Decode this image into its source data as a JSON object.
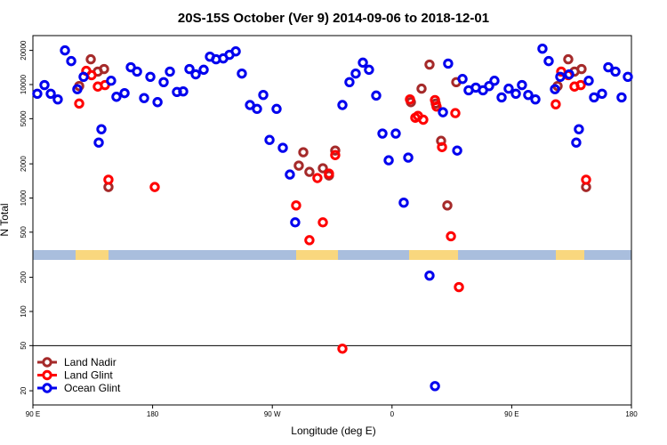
{
  "chart_data": {
    "type": "scatter",
    "title": "20S-15S October (Ver 9)   2014-09-06 to 2018-12-01",
    "xlabel": "Longitude (deg E)",
    "ylabel": "N Total",
    "xlim": [
      90,
      540
    ],
    "xticks": [
      {
        "value": 90,
        "label": "90 E"
      },
      180,
      {
        "value": 270,
        "label": "90 W"
      },
      {
        "value": 360,
        "label": "0"
      },
      {
        "value": 450,
        "label": "90 E"
      },
      {
        "value": 540,
        "label": "180"
      }
    ],
    "ylim": [
      15,
      27000
    ],
    "yscale": "log",
    "yticks": [
      20,
      50,
      100,
      200,
      500,
      1000,
      2000,
      5000,
      10000,
      20000
    ],
    "hline": 50,
    "legend": "bottom-left",
    "series": [
      {
        "name": "Land Nadir",
        "color": "#a52a2a",
        "x": [
          124.8,
          133.5,
          138.8,
          143.5,
          146.8,
          289.9,
          293.3,
          297.9,
          308.0,
          312.6,
          317.3,
          374.2,
          382.2,
          388.2,
          392.9,
          396.9,
          401.6,
          408.3,
          484.5,
          492.5,
          497.2,
          502.5,
          505.9
        ],
        "values": [
          9700,
          16700,
          13000,
          13700,
          1250,
          1930,
          2530,
          1700,
          1830,
          1580,
          2620,
          7000,
          9200,
          15000,
          6800,
          3190,
          860,
          10500,
          9700,
          16700,
          13000,
          13700,
          1250
        ]
      },
      {
        "name": "Land Glint",
        "color": "#ff0000",
        "x": [
          124.8,
          130.1,
          134.1,
          138.8,
          144.2,
          146.8,
          181.6,
          287.9,
          297.9,
          303.9,
          308.0,
          312.6,
          317.3,
          322.7,
          373.5,
          377.5,
          379.5,
          383.5,
          392.3,
          393.5,
          397.6,
          404.3,
          407.6,
          410.3,
          483.1,
          487.2,
          492.5,
          497.2,
          501.9,
          505.9
        ],
        "values": [
          6800,
          13200,
          12100,
          9600,
          9900,
          1450,
          1250,
          860,
          425,
          1500,
          610,
          1640,
          2390,
          47,
          7400,
          5100,
          5300,
          4900,
          7300,
          6400,
          2810,
          460,
          5600,
          164,
          6700,
          13000,
          12100,
          9600,
          9900,
          1450
        ]
      },
      {
        "name": "Ocean Glint",
        "color": "#0000ee",
        "x": [
          93.3,
          98.7,
          103.4,
          108.7,
          114.1,
          118.8,
          123.4,
          128.1,
          139.5,
          141.5,
          148.8,
          152.8,
          158.9,
          163.6,
          168.3,
          173.6,
          178.3,
          183.7,
          188.3,
          193.0,
          198.3,
          203.0,
          207.7,
          212.4,
          218.4,
          223.1,
          227.7,
          233.1,
          237.8,
          242.5,
          247.1,
          253.2,
          258.5,
          263.2,
          267.9,
          273.2,
          277.9,
          283.2,
          287.2,
          322.7,
          328.0,
          332.7,
          338.1,
          342.7,
          348.1,
          352.8,
          357.5,
          362.8,
          368.8,
          372.2,
          388.2,
          392.3,
          398.3,
          402.2,
          409.0,
          413.0,
          417.6,
          423.0,
          428.4,
          433.0,
          437.0,
          442.4,
          447.7,
          453.1,
          457.7,
          462.4,
          467.8,
          473.1,
          477.8,
          482.5,
          486.5,
          493.2,
          498.5,
          500.5,
          507.9,
          511.9,
          517.9,
          522.6,
          528.0,
          532.6,
          537.3
        ],
        "values": [
          8300,
          9900,
          8300,
          7400,
          20000,
          16100,
          9100,
          11700,
          3080,
          4040,
          10800,
          7800,
          8400,
          14200,
          13000,
          7600,
          11700,
          7000,
          10500,
          13000,
          8600,
          8700,
          13700,
          12300,
          13500,
          17600,
          16700,
          17000,
          18300,
          19600,
          12500,
          6600,
          6100,
          8100,
          3250,
          6100,
          2770,
          1610,
          610,
          6600,
          10500,
          12500,
          15600,
          13500,
          8000,
          3700,
          2150,
          3700,
          910,
          2270,
          207,
          22,
          5700,
          15300,
          2620,
          11200,
          8900,
          9400,
          8900,
          9700,
          10800,
          7700,
          9200,
          8300,
          9900,
          8100,
          7400,
          20700,
          16100,
          9100,
          11700,
          12300,
          3080,
          4040,
          10800,
          7700,
          8300,
          14200,
          13000,
          7700,
          11700
        ]
      }
    ]
  }
}
